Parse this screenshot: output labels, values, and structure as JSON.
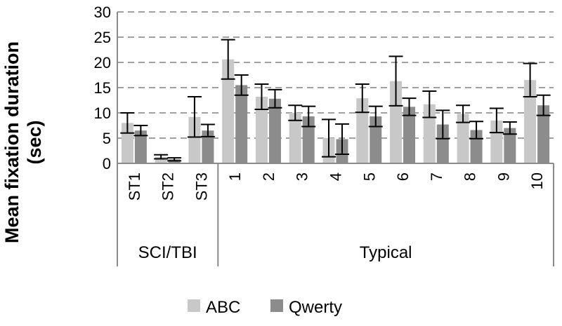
{
  "chart_data": {
    "type": "bar",
    "ylabel_line1": "Mean fixation duration",
    "ylabel_line2": "(sec)",
    "ylim": [
      0,
      30
    ],
    "yticks": [
      "0",
      "5",
      "10",
      "15",
      "20",
      "25",
      "30"
    ],
    "grid": "horizontal dashed",
    "legend_position": "bottom",
    "categories": [
      "ST1",
      "ST2",
      "ST3",
      "1",
      "2",
      "3",
      "4",
      "5",
      "6",
      "7",
      "8",
      "9",
      "10"
    ],
    "groups": [
      {
        "label": "SCI/TBI",
        "count": 3
      },
      {
        "label": "Typical",
        "count": 10
      }
    ],
    "series": [
      {
        "name": "ABC",
        "color": "#c8c8c8",
        "values": [
          8.0,
          1.3,
          9.2,
          20.6,
          13.2,
          10.0,
          5.0,
          12.9,
          16.3,
          11.7,
          9.8,
          8.5,
          16.5
        ],
        "errors": [
          2.0,
          0.4,
          4.0,
          3.9,
          2.5,
          1.5,
          3.7,
          2.8,
          4.9,
          2.6,
          1.7,
          2.4,
          3.3
        ]
      },
      {
        "name": "Qwerty",
        "color": "#8c8c8c",
        "values": [
          6.5,
          0.8,
          6.5,
          15.5,
          12.8,
          9.3,
          4.8,
          9.3,
          11.2,
          7.7,
          6.6,
          7.0,
          11.5
        ],
        "errors": [
          1.0,
          0.3,
          1.2,
          2.0,
          1.8,
          2.0,
          3.0,
          2.0,
          1.7,
          2.8,
          1.7,
          1.2,
          2.0
        ]
      }
    ]
  }
}
